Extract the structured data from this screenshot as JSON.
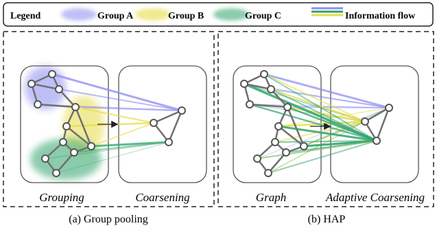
{
  "legend": {
    "title": "Legend",
    "group_a": "Group A",
    "group_b": "Group B",
    "group_c": "Group C",
    "flow": "Information flow"
  },
  "colors": {
    "group_a": "#8c8cf2",
    "group_b": "#e6dc46",
    "group_c": "#2fa36b",
    "node_fill": "#ffffff",
    "node_stroke": "#555555",
    "edge": "#707070"
  },
  "panels": {
    "a": {
      "left_label": "Grouping",
      "right_label": "Coarsening",
      "caption": "(a) Group pooling"
    },
    "b": {
      "left_label": "Graph",
      "right_label": "Adaptive Coarsening",
      "caption": "(b) HAP"
    }
  }
}
